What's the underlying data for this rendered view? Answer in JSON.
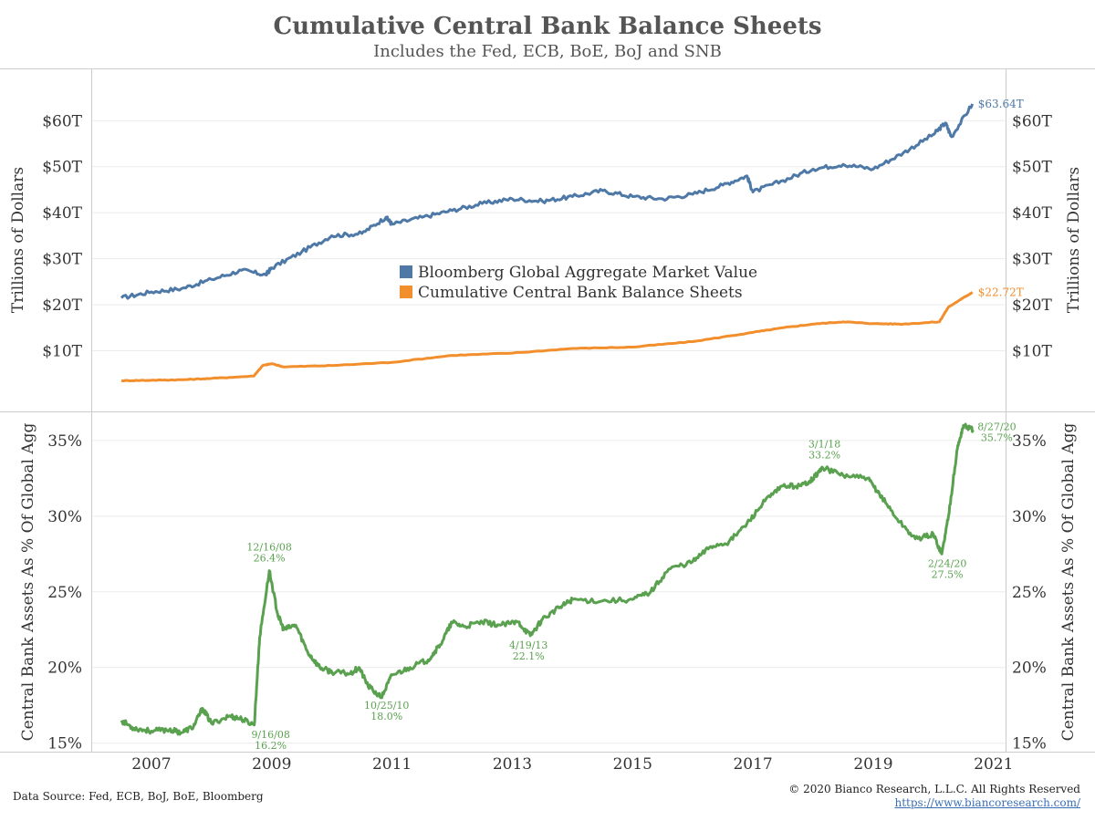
{
  "title": "Cumulative Central Bank Balance Sheets",
  "subtitle": "Includes the Fed, ECB, BoE, BoJ and SNB",
  "footer": {
    "source": "Data Source: Fed, ECB, BoJ, BoE, Bloomberg",
    "copyright": "© 2020 Bianco Research, L.L.C. All Rights Reserved",
    "url": "https://www.biancoresearch.com/"
  },
  "colors": {
    "agg": "#4e79a7",
    "cb": "#f28e2b",
    "ratio": "#59a14f",
    "grid": "#ececec",
    "axis": "#cccccc"
  },
  "chart_data": [
    {
      "type": "line",
      "ylabel": "Trillions of Dollars",
      "ylim": [
        0,
        66
      ],
      "yticks": [
        10,
        20,
        30,
        40,
        50,
        60
      ],
      "ytick_labels": [
        "$10T",
        "$20T",
        "$30T",
        "$40T",
        "$50T",
        "$60T"
      ],
      "legend": {
        "placement": "center",
        "items": [
          "Bloomberg Global Aggregate Market Value",
          "Cumulative Central Bank Balance Sheets"
        ]
      },
      "series": [
        {
          "name": "Bloomberg Global Aggregate Market Value",
          "color": "#4e79a7",
          "end_label": "$63.64T",
          "x": [
            2006.5,
            2007.0,
            2007.5,
            2008.0,
            2008.5,
            2008.9,
            2009.0,
            2009.5,
            2010.0,
            2010.5,
            2010.9,
            2011.0,
            2011.5,
            2012.0,
            2012.5,
            2013.0,
            2013.5,
            2014.0,
            2014.5,
            2015.0,
            2015.5,
            2016.0,
            2016.5,
            2016.9,
            2017.0,
            2017.5,
            2018.0,
            2018.5,
            2019.0,
            2019.5,
            2020.0,
            2020.2,
            2020.3,
            2020.65
          ],
          "y": [
            21.5,
            22.8,
            23.5,
            25.5,
            27.5,
            26.5,
            28.0,
            31.5,
            35.0,
            35.5,
            39.0,
            37.5,
            39.0,
            40.5,
            42.0,
            43.0,
            42.5,
            43.5,
            44.8,
            43.5,
            43.0,
            44.0,
            46.0,
            48.0,
            44.5,
            47.0,
            49.5,
            50.5,
            49.5,
            53.0,
            57.0,
            59.5,
            56.5,
            63.64
          ]
        },
        {
          "name": "Cumulative Central Bank Balance Sheets",
          "color": "#f28e2b",
          "end_label": "$22.72T",
          "x": [
            2006.5,
            2007.0,
            2007.5,
            2008.0,
            2008.7,
            2008.85,
            2009.0,
            2009.2,
            2010.0,
            2011.0,
            2012.0,
            2013.0,
            2014.0,
            2015.0,
            2016.0,
            2017.0,
            2017.5,
            2018.0,
            2018.5,
            2019.0,
            2019.5,
            2020.1,
            2020.25,
            2020.65
          ],
          "y": [
            3.5,
            3.6,
            3.7,
            4.0,
            4.5,
            6.8,
            7.2,
            6.5,
            6.8,
            7.5,
            9.0,
            9.5,
            10.5,
            10.8,
            12.0,
            14.0,
            15.0,
            15.8,
            16.3,
            15.9,
            15.8,
            16.3,
            19.5,
            22.72
          ]
        }
      ]
    },
    {
      "type": "line",
      "ylabel": "Central Bank Assets As % Of Global Agg",
      "ylim": [
        14.5,
        36.8
      ],
      "yticks": [
        15,
        20,
        25,
        30,
        35
      ],
      "ytick_labels": [
        "15%",
        "20%",
        "25%",
        "30%",
        "35%"
      ],
      "xlim": [
        2006.0,
        2021.2
      ],
      "xticks": [
        2007,
        2009,
        2011,
        2013,
        2015,
        2017,
        2019,
        2021
      ],
      "xtick_labels": [
        "2007",
        "2009",
        "2011",
        "2013",
        "2015",
        "2017",
        "2019",
        "2021"
      ],
      "series": [
        {
          "color": "#59a14f",
          "x": [
            2006.5,
            2006.7,
            2007.0,
            2007.3,
            2007.5,
            2007.7,
            2007.85,
            2008.0,
            2008.3,
            2008.5,
            2008.71,
            2008.8,
            2008.96,
            2009.1,
            2009.2,
            2009.4,
            2009.6,
            2009.8,
            2010.0,
            2010.3,
            2010.45,
            2010.6,
            2010.82,
            2011.0,
            2011.3,
            2011.6,
            2011.8,
            2012.0,
            2012.2,
            2012.5,
            2012.8,
            2013.1,
            2013.3,
            2013.5,
            2013.8,
            2014.0,
            2014.5,
            2015.0,
            2015.3,
            2015.6,
            2016.0,
            2016.3,
            2016.6,
            2016.9,
            2017.2,
            2017.5,
            2017.8,
            2018.0,
            2018.16,
            2018.5,
            2018.9,
            2019.1,
            2019.4,
            2019.7,
            2020.0,
            2020.14,
            2020.25,
            2020.4,
            2020.5,
            2020.66
          ],
          "y": [
            16.5,
            16.0,
            15.8,
            15.9,
            15.7,
            16.1,
            17.3,
            16.3,
            16.8,
            16.6,
            16.2,
            22.0,
            26.4,
            23.5,
            22.5,
            22.8,
            21.0,
            20.0,
            19.7,
            19.6,
            20.0,
            18.8,
            18.0,
            19.5,
            20.0,
            20.5,
            21.5,
            23.0,
            22.7,
            23.0,
            22.8,
            23.0,
            22.1,
            23.2,
            24.0,
            24.5,
            24.4,
            24.5,
            25.0,
            26.5,
            27.0,
            28.0,
            28.3,
            29.5,
            31.0,
            32.0,
            32.0,
            32.5,
            33.2,
            32.7,
            32.5,
            31.5,
            29.8,
            28.5,
            28.8,
            27.5,
            30.0,
            34.5,
            36.0,
            35.7
          ]
        }
      ],
      "annotations": [
        {
          "date": "12/16/08",
          "value": "26.4%",
          "x": 2008.96,
          "y": 26.4
        },
        {
          "date": "9/16/08",
          "value": "16.2%",
          "x": 2008.71,
          "y": 16.2
        },
        {
          "date": "10/25/10",
          "value": "18.0%",
          "x": 2010.82,
          "y": 18.0
        },
        {
          "date": "4/19/13",
          "value": "22.1%",
          "x": 2013.3,
          "y": 22.1
        },
        {
          "date": "3/1/18",
          "value": "33.2%",
          "x": 2018.16,
          "y": 33.2
        },
        {
          "date": "2/24/20",
          "value": "27.5%",
          "x": 2020.14,
          "y": 27.5
        },
        {
          "date": "8/27/20",
          "value": "35.7%",
          "x": 2020.66,
          "y": 35.7
        }
      ]
    }
  ]
}
